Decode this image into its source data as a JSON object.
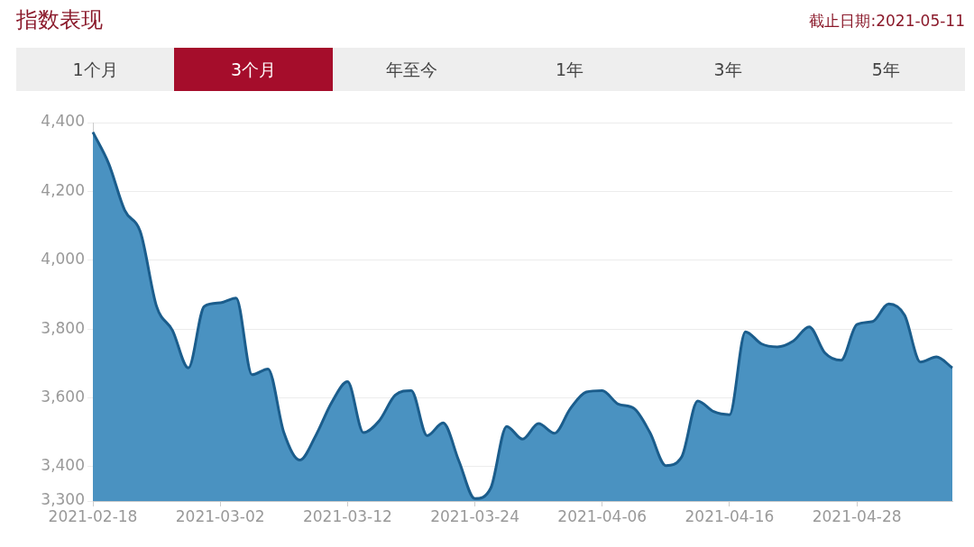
{
  "chart_data": {
    "type": "area",
    "title": "指数表现",
    "annotations": [
      "截止日期:2021-05-11",
      "1个月",
      "3个月",
      "年至今",
      "1年",
      "3年",
      "5年"
    ],
    "categories": [
      "2021-02-18",
      null,
      null,
      null,
      null,
      null,
      null,
      null,
      "2021-03-02",
      null,
      null,
      null,
      null,
      null,
      null,
      null,
      "2021-03-12",
      null,
      null,
      null,
      null,
      null,
      null,
      null,
      "2021-03-24",
      null,
      null,
      null,
      null,
      null,
      null,
      null,
      "2021-04-06",
      null,
      null,
      null,
      null,
      null,
      null,
      null,
      "2021-04-16",
      null,
      null,
      null,
      null,
      null,
      null,
      null,
      "2021-04-28",
      null,
      null,
      null,
      null,
      null,
      null
    ],
    "series": [
      {
        "color": "#4a92c1",
        "values": [
          4372,
          4280,
          4145,
          4080,
          3866,
          3796,
          3687,
          3866,
          3876,
          3890,
          3667,
          3684,
          3499,
          3419,
          3490,
          3586,
          3647,
          3499,
          3534,
          3608,
          3621,
          3490,
          3527,
          3416,
          3307,
          3338,
          3517,
          3480,
          3525,
          3497,
          3569,
          3617,
          3621,
          3582,
          3569,
          3499,
          3403,
          3429,
          3591,
          3560,
          3551,
          3792,
          3757,
          3748,
          3765,
          3806,
          3730,
          3709,
          3813,
          3822,
          3873,
          3840,
          3704,
          3719,
          3687
        ]
      }
    ],
    "ylim": [
      3300,
      4400
    ],
    "yticks": [
      {
        "value": 3300,
        "label": "3,300"
      },
      {
        "value": 3400,
        "label": "3,400"
      },
      {
        "value": 3600,
        "label": "3,600"
      },
      {
        "value": 3800,
        "label": "3,800"
      },
      {
        "value": 4000,
        "label": "4,000"
      },
      {
        "value": 4200,
        "label": "4,200"
      },
      {
        "value": 4400,
        "label": "4,400"
      }
    ],
    "grid": "y",
    "legend": false
  }
}
